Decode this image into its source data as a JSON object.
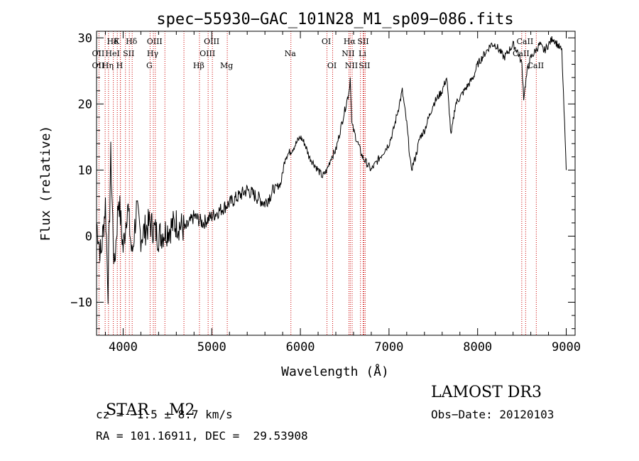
{
  "chart_data": {
    "type": "line",
    "title": "spec−55930−GAC_101N28_M1_sp09−086.fits",
    "xlabel": "Wavelength (Å)",
    "ylabel": "Flux (relative)",
    "xlim": [
      3700,
      9100
    ],
    "ylim": [
      -15,
      31
    ],
    "x_ticks": [
      {
        "value": 4000,
        "label": "4000"
      },
      {
        "value": 5000,
        "label": "5000"
      },
      {
        "value": 6000,
        "label": "6000"
      },
      {
        "value": 7000,
        "label": "7000"
      },
      {
        "value": 8000,
        "label": "8000"
      },
      {
        "value": 9000,
        "label": "9000"
      }
    ],
    "y_ticks": [
      {
        "value": -10,
        "label": "−10"
      },
      {
        "value": 0,
        "label": "0"
      },
      {
        "value": 10,
        "label": "10"
      },
      {
        "value": 20,
        "label": "20"
      },
      {
        "value": 30,
        "label": "30"
      }
    ],
    "line_color": "#000000",
    "marker_color": "#cc0000",
    "series": [
      {
        "name": "flux",
        "x": [
          3700,
          3750,
          3800,
          3830,
          3860,
          3900,
          3950,
          4000,
          4050,
          4100,
          4150,
          4200,
          4300,
          4400,
          4500,
          4600,
          4700,
          4800,
          4900,
          5000,
          5100,
          5200,
          5300,
          5400,
          5500,
          5600,
          5700,
          5780,
          5830,
          5900,
          5950,
          6000,
          6050,
          6100,
          6150,
          6200,
          6250,
          6300,
          6350,
          6400,
          6450,
          6500,
          6550,
          6563,
          6580,
          6600,
          6650,
          6700,
          6750,
          6800,
          6850,
          6900,
          6950,
          7000,
          7050,
          7100,
          7150,
          7200,
          7250,
          7300,
          7350,
          7400,
          7450,
          7500,
          7550,
          7600,
          7650,
          7680,
          7700,
          7750,
          7800,
          7850,
          7900,
          7950,
          8000,
          8050,
          8100,
          8150,
          8200,
          8250,
          8300,
          8350,
          8400,
          8450,
          8500,
          8520,
          8540,
          8560,
          8600,
          8650,
          8700,
          8750,
          8800,
          8850,
          8900,
          8950,
          9000
        ],
        "y": [
          2,
          -3,
          5,
          -8,
          12,
          -5,
          6,
          -2,
          5,
          -3,
          4,
          0,
          2,
          0,
          1,
          2,
          1,
          3,
          2,
          3,
          4,
          5,
          6,
          7,
          6,
          5,
          7,
          8,
          12,
          13,
          14,
          15,
          14,
          12,
          11,
          10,
          9,
          10,
          12,
          13,
          16,
          19,
          22,
          24,
          17,
          16,
          14,
          12,
          11,
          10,
          11,
          12,
          13,
          14,
          16,
          19,
          22,
          17,
          10,
          12,
          15,
          16,
          18,
          20,
          21,
          22,
          24,
          19,
          15,
          20,
          21,
          22,
          23,
          24,
          26,
          27,
          28,
          29,
          29,
          28,
          27,
          28,
          29,
          28,
          26,
          21,
          23,
          25,
          27,
          28,
          29,
          28,
          29,
          30,
          29,
          28,
          10
        ]
      }
    ],
    "line_markers": [
      {
        "label": "Hδ",
        "wl": 3889
      },
      {
        "label": "K",
        "wl": 3934
      },
      {
        "label": "Hδ",
        "wl": 4102
      },
      {
        "label": "OIII",
        "wl": 4363
      },
      {
        "label": "OII",
        "wl": 3727
      },
      {
        "label": "HeI",
        "wl": 3889
      },
      {
        "label": "SII",
        "wl": 4070
      },
      {
        "label": "Hγ",
        "wl": 4341
      },
      {
        "label": "OII",
        "wl": 3727
      },
      {
        "label": "Hη",
        "wl": 3835
      },
      {
        "label": "H",
        "wl": 3968
      },
      {
        "label": "G",
        "wl": 4304
      },
      {
        "label": "OIII",
        "wl": 5007
      },
      {
        "label": "OIII",
        "wl": 4959
      },
      {
        "label": "Hβ",
        "wl": 4861
      },
      {
        "label": "Mg",
        "wl": 5175
      },
      {
        "label": "Na",
        "wl": 5893
      },
      {
        "label": "OI",
        "wl": 6300
      },
      {
        "label": "OI",
        "wl": 6364
      },
      {
        "label": "Hα",
        "wl": 6563
      },
      {
        "label": "SII",
        "wl": 6716
      },
      {
        "label": "NII",
        "wl": 6548
      },
      {
        "label": "Li",
        "wl": 6708
      },
      {
        "label": "NII",
        "wl": 6584
      },
      {
        "label": "SII",
        "wl": 6731
      },
      {
        "label": "CaII",
        "wl": 8542
      },
      {
        "label": "CaII",
        "wl": 8498
      },
      {
        "label": "CaII",
        "wl": 8662
      }
    ],
    "extra_marker_lines": [
      3797,
      3970,
      4026,
      4471,
      4686,
      6678,
      6716,
      6731
    ]
  },
  "info": {
    "class": "STAR",
    "subclass": "M2",
    "survey": "LAMOST DR3",
    "cz": "cz = −1.5 ± 8.7 km/s",
    "obs_date": "Obs−Date: 20120103",
    "coords": "RA = 101.16911, DEC =  29.53908"
  }
}
